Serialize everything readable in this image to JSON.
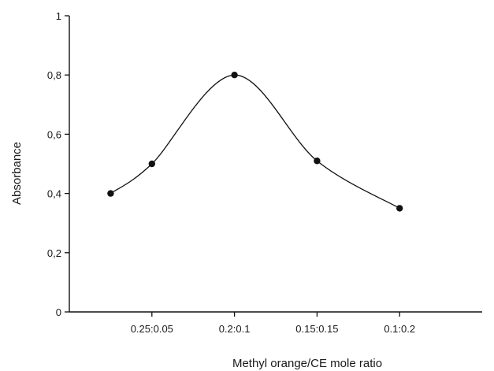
{
  "chart_data": {
    "type": "line",
    "xlabel": "Methyl orange/CE mole ratio",
    "ylabel": "Absorbance",
    "x_range": [
      0,
      5
    ],
    "ylim": [
      0,
      1
    ],
    "x_ticks": [
      {
        "pos": 1,
        "label": "0.25:0.05"
      },
      {
        "pos": 2,
        "label": "0.2:0.1"
      },
      {
        "pos": 3,
        "label": "0.15:0.15"
      },
      {
        "pos": 4,
        "label": "0.1:0.2"
      }
    ],
    "y_ticks": [
      {
        "value": 0,
        "label": "0"
      },
      {
        "value": 0.2,
        "label": "0,2"
      },
      {
        "value": 0.4,
        "label": "0,4"
      },
      {
        "value": 0.6,
        "label": "0,6"
      },
      {
        "value": 0.8,
        "label": "0,8"
      },
      {
        "value": 1,
        "label": "1"
      }
    ],
    "series": [
      {
        "x": [
          0.5,
          1,
          2,
          3,
          4
        ],
        "y": [
          0.4,
          0.5,
          0.8,
          0.51,
          0.35
        ],
        "color": "#111111",
        "smooth": true
      }
    ],
    "grid": false,
    "legend": "none"
  }
}
